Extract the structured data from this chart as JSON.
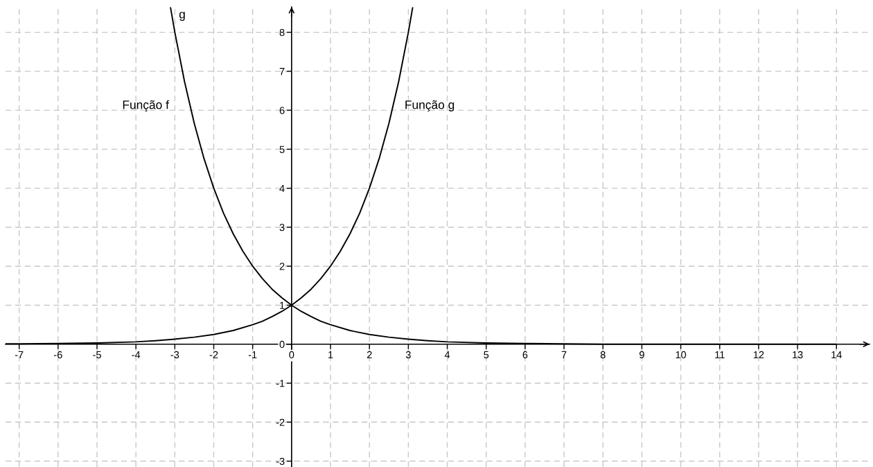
{
  "chart_data": {
    "type": "line",
    "xlim": [
      -7.35,
      14.85
    ],
    "ylim": [
      -3.15,
      8.65
    ],
    "xticks": [
      -7,
      -6,
      -5,
      -4,
      -3,
      -2,
      -1,
      0,
      1,
      2,
      3,
      4,
      5,
      6,
      7,
      8,
      9,
      10,
      11,
      12,
      13,
      14
    ],
    "yticks": [
      -3,
      -2,
      -1,
      0,
      1,
      2,
      3,
      4,
      5,
      6,
      7,
      8
    ],
    "grid": true,
    "marker": "none",
    "line_style": "solid",
    "series": [
      {
        "name": "Função f",
        "color": "#000000",
        "x": [
          -3.11,
          -3,
          -2.75,
          -2.5,
          -2.25,
          -2,
          -1.75,
          -1.5,
          -1.25,
          -1,
          -0.75,
          -0.5,
          -0.25,
          0,
          0.25,
          0.5,
          0.75,
          1,
          1.5,
          2,
          2.5,
          3,
          3.5,
          4,
          5,
          6,
          7,
          8,
          10,
          12,
          14
        ],
        "values": [
          8.63,
          8,
          6.73,
          5.66,
          4.76,
          4,
          3.36,
          2.83,
          2.38,
          2,
          1.68,
          1.41,
          1.19,
          1,
          0.84,
          0.71,
          0.59,
          0.5,
          0.35,
          0.25,
          0.18,
          0.13,
          0.09,
          0.06,
          0.03,
          0.02,
          0.01,
          0,
          0,
          0,
          0
        ]
      },
      {
        "name": "Função g",
        "color": "#000000",
        "x": [
          -7.35,
          -7,
          -6,
          -5,
          -4,
          -3.5,
          -3,
          -2.5,
          -2,
          -1.5,
          -1,
          -0.75,
          -0.5,
          -0.25,
          0,
          0.25,
          0.5,
          0.75,
          1,
          1.25,
          1.5,
          1.75,
          2,
          2.25,
          2.5,
          2.75,
          3,
          3.11
        ],
        "values": [
          0.01,
          0.01,
          0.02,
          0.03,
          0.06,
          0.09,
          0.13,
          0.18,
          0.25,
          0.35,
          0.5,
          0.59,
          0.71,
          0.84,
          1,
          1.19,
          1.41,
          1.68,
          2,
          2.38,
          2.83,
          3.36,
          4,
          4.76,
          5.66,
          6.73,
          8,
          8.63
        ]
      }
    ],
    "annotations": [
      "g"
    ]
  }
}
